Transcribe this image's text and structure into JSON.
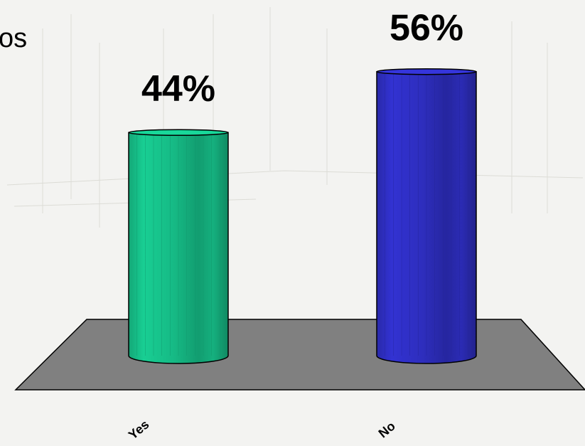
{
  "chart_data": {
    "type": "bar",
    "title": "os",
    "categories": [
      "Yes",
      "No"
    ],
    "values": [
      44,
      56
    ],
    "value_labels": [
      "44%",
      "56%"
    ],
    "colors": [
      "#17c48c",
      "#3030c8"
    ]
  }
}
